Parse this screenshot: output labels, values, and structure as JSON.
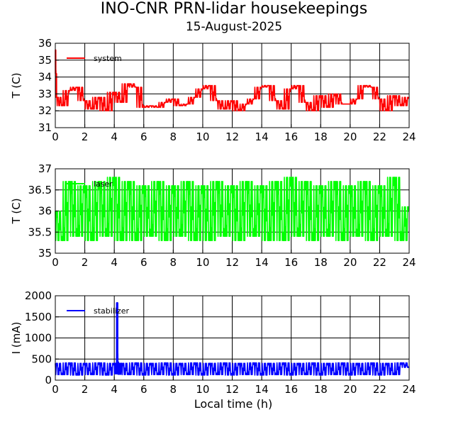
{
  "title": "INO-CNR PRN-lidar housekeepings",
  "subtitle": "15-August-2025",
  "xlabel": "Local time (h)",
  "colors": {
    "system": "#ff0000",
    "laser": "#00ff00",
    "stabilizer": "#0000ff",
    "axis": "#000000"
  },
  "chart_data": [
    {
      "type": "line",
      "ylabel": "T (C)",
      "xlim": [
        0,
        24
      ],
      "ylim": [
        31,
        36
      ],
      "xticks": [
        "0",
        "2",
        "4",
        "6",
        "8",
        "10",
        "12",
        "14",
        "16",
        "18",
        "20",
        "22",
        "24"
      ],
      "yticks": [
        "31",
        "32",
        "33",
        "34",
        "35",
        "36"
      ],
      "grid": true,
      "legend_placement": "top-left",
      "series": [
        {
          "name": "system",
          "color": "#ff0000",
          "x": [
            0,
            0.05,
            0.1,
            0.5,
            1,
            1.5,
            2,
            2.5,
            3,
            3.5,
            4,
            4.5,
            5,
            5.5,
            6,
            6.5,
            7,
            7.5,
            8,
            8.5,
            9,
            9.5,
            10,
            10.5,
            11,
            11.5,
            12,
            12.5,
            13,
            13.5,
            14,
            14.5,
            15,
            15.5,
            16,
            16.5,
            17,
            17.5,
            18,
            18.5,
            19,
            19.5,
            20,
            20.5,
            21,
            21.5,
            22,
            22.5,
            23,
            23.5,
            24
          ],
          "y": [
            35.6,
            34.2,
            32.8,
            32.3,
            33.2,
            33.4,
            32.6,
            32.1,
            32.8,
            32.0,
            33.1,
            32.5,
            33.6,
            33.4,
            32.2,
            32.3,
            32.2,
            32.5,
            32.7,
            32.3,
            32.4,
            32.8,
            33.3,
            33.5,
            32.6,
            32.1,
            32.6,
            32.0,
            32.4,
            32.7,
            33.4,
            33.5,
            32.6,
            32.1,
            33.3,
            33.5,
            32.5,
            32.0,
            32.9,
            32.2,
            33.0,
            32.4,
            32.4,
            32.7,
            33.5,
            33.4,
            32.7,
            32.0,
            32.9,
            32.3,
            32.8
          ]
        }
      ]
    },
    {
      "type": "line",
      "ylabel": "T (C)",
      "xlim": [
        0,
        24
      ],
      "ylim": [
        35,
        37
      ],
      "xticks": [
        "0",
        "2",
        "4",
        "6",
        "8",
        "10",
        "12",
        "14",
        "16",
        "18",
        "20",
        "22",
        "24"
      ],
      "yticks": [
        "35",
        "35.5",
        "36",
        "36.5",
        "37"
      ],
      "grid": true,
      "legend_placement": "top-left",
      "series": [
        {
          "name": "laser",
          "color": "#00ff00",
          "x": [
            0,
            0.5,
            1,
            1.5,
            2,
            2.5,
            3,
            3.5,
            4,
            4.5,
            5,
            5.5,
            6,
            6.5,
            7,
            7.5,
            8,
            8.5,
            9,
            9.5,
            10,
            10.5,
            11,
            11.5,
            12,
            12.5,
            13,
            13.5,
            14,
            14.5,
            15,
            15.5,
            16,
            16.5,
            17,
            17.5,
            18,
            18.5,
            19,
            19.5,
            20,
            20.5,
            21,
            21.5,
            22,
            22.5,
            23,
            23.5,
            24
          ],
          "y": [
            36.0,
            35.3,
            36.7,
            35.4,
            36.6,
            35.3,
            36.7,
            35.4,
            36.8,
            35.3,
            36.7,
            35.3,
            36.6,
            35.4,
            36.7,
            35.3,
            36.6,
            35.4,
            36.7,
            35.3,
            36.6,
            35.3,
            36.7,
            35.4,
            36.6,
            35.3,
            36.7,
            35.4,
            36.6,
            35.3,
            36.7,
            35.3,
            36.8,
            35.4,
            36.7,
            35.3,
            36.6,
            35.4,
            36.7,
            35.3,
            36.6,
            35.4,
            36.7,
            35.3,
            36.6,
            35.4,
            36.8,
            35.3,
            36.1
          ]
        }
      ]
    },
    {
      "type": "line",
      "ylabel": "I (mA)",
      "xlim": [
        0,
        24
      ],
      "ylim": [
        0,
        2000
      ],
      "xticks": [
        "0",
        "2",
        "4",
        "6",
        "8",
        "10",
        "12",
        "14",
        "16",
        "18",
        "20",
        "22",
        "24"
      ],
      "yticks": [
        "0",
        "500",
        "1000",
        "1500",
        "2000"
      ],
      "grid": true,
      "legend_placement": "top-left",
      "series": [
        {
          "name": "stabilizer",
          "color": "#0000ff",
          "x": [
            0,
            0.5,
            1,
            1.5,
            2,
            2.5,
            3,
            3.5,
            4,
            4.15,
            4.2,
            4.25,
            4.3,
            4.5,
            5,
            5.5,
            6,
            6.5,
            7,
            7.5,
            8,
            8.5,
            9,
            9.5,
            10,
            10.5,
            11,
            11.5,
            12,
            12.5,
            13,
            13.5,
            14,
            14.5,
            15,
            15.5,
            16,
            16.5,
            17,
            17.5,
            18,
            18.5,
            19,
            19.5,
            20,
            20.5,
            21,
            21.5,
            22,
            22.5,
            23,
            23.5,
            24
          ],
          "y": [
            400,
            130,
            410,
            120,
            400,
            130,
            410,
            120,
            400,
            150,
            1830,
            430,
            140,
            400,
            130,
            410,
            120,
            400,
            130,
            410,
            120,
            400,
            130,
            410,
            120,
            400,
            130,
            410,
            120,
            400,
            130,
            410,
            120,
            400,
            130,
            410,
            120,
            400,
            130,
            410,
            120,
            400,
            130,
            410,
            120,
            400,
            130,
            410,
            120,
            400,
            130,
            410,
            300
          ]
        }
      ]
    }
  ]
}
